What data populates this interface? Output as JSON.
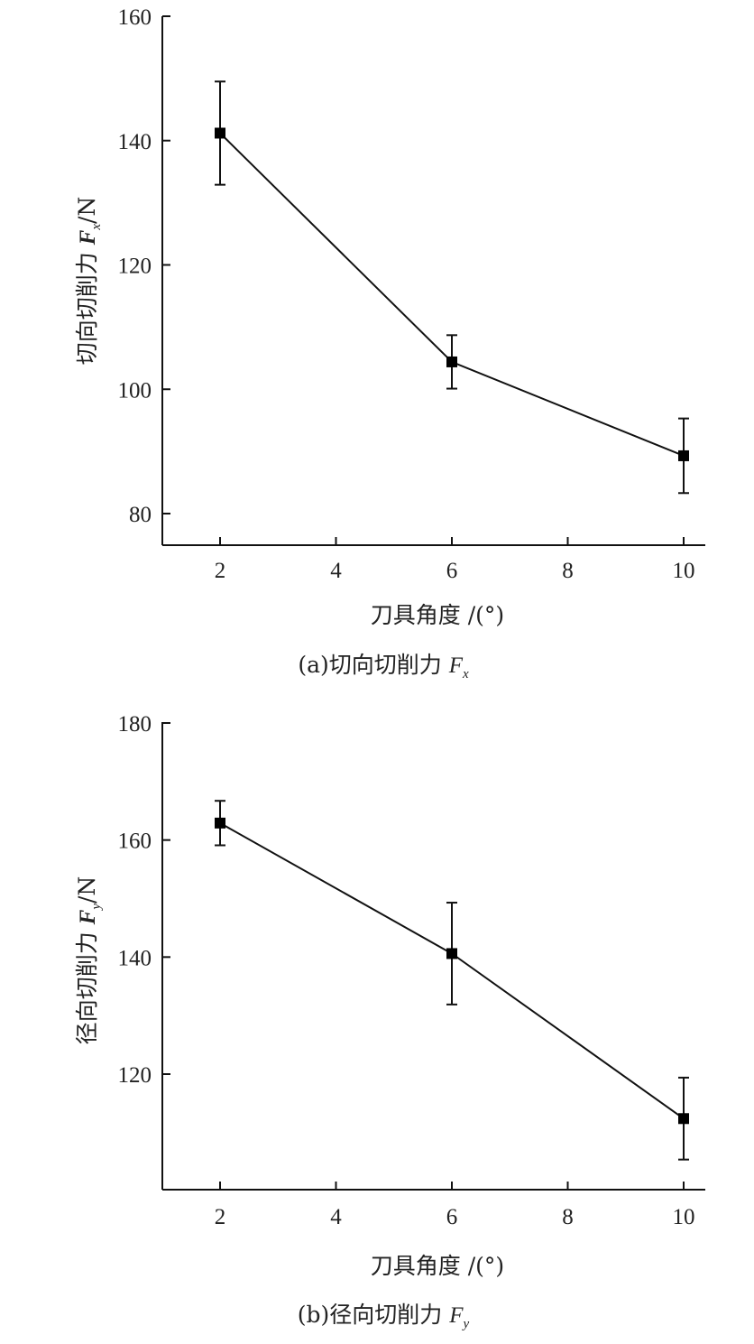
{
  "chart_data": [
    {
      "type": "line",
      "caption": "(a)切向切削力 Fx",
      "caption_parts": {
        "text": "(a)切向切削力 ",
        "var": "F",
        "sub": "x"
      },
      "xlabel": "刀具角度 /(°)",
      "ylabel": "切向切削力 Fx/N",
      "ylabel_parts": {
        "text": "切向切削力 ",
        "var": "F",
        "sub": "x",
        "unit": "/N"
      },
      "xlim": [
        1,
        10
      ],
      "ylim": [
        75,
        160
      ],
      "xticks": [
        2,
        4,
        6,
        8,
        10
      ],
      "yticks": [
        80,
        100,
        120,
        140,
        160
      ],
      "x": [
        2,
        6,
        10
      ],
      "values": [
        141.2,
        104.4,
        89.3
      ],
      "error": [
        8.3,
        4.3,
        6.0
      ],
      "grid": false
    },
    {
      "type": "line",
      "caption": "(b)径向切削力 Fy",
      "caption_parts": {
        "text": "(b)径向切削力 ",
        "var": "F",
        "sub": "y"
      },
      "xlabel": "刀具角度 /(°)",
      "ylabel": "径向切削力 Fy/N",
      "ylabel_parts": {
        "text": "径向切削力 ",
        "var": "F",
        "sub": "y",
        "unit": "/N"
      },
      "xlim": [
        1,
        10
      ],
      "ylim": [
        100,
        180
      ],
      "xticks": [
        2,
        4,
        6,
        8,
        10
      ],
      "yticks": [
        120,
        140,
        160,
        180
      ],
      "x": [
        2,
        6,
        10
      ],
      "values": [
        162.9,
        140.6,
        112.4
      ],
      "error": [
        3.8,
        8.7,
        7.0
      ],
      "grid": false
    }
  ],
  "colors": {
    "line": "#111111",
    "marker": "#000000",
    "axis": "#111111",
    "background": "#ffffff"
  }
}
